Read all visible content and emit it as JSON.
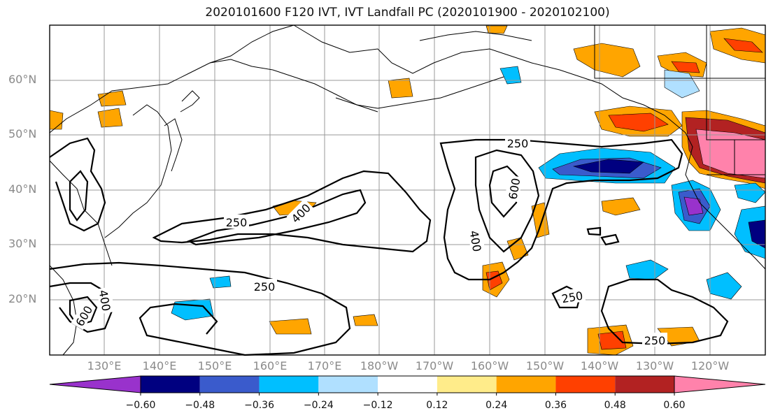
{
  "title": "2020101600 F120 IVT, IVT Landfall PC (2020101900 - 2020102100)",
  "lat_labels": [
    "60°N",
    "50°N",
    "40°N",
    "30°N",
    "20°N"
  ],
  "lon_labels": [
    "130°E",
    "140°E",
    "150°E",
    "160°E",
    "170°E",
    "180°W",
    "170°W",
    "160°W",
    "150°W",
    "140°W",
    "130°W",
    "120°W"
  ],
  "contour_labels": [
    "250",
    "400",
    "250",
    "600",
    "400",
    "250",
    "400",
    "600",
    "250",
    "250"
  ],
  "colorbar": {
    "ticks": [
      "−0.60",
      "−0.48",
      "−0.36",
      "−0.24",
      "−0.12",
      "0.12",
      "0.24",
      "0.36",
      "0.48",
      "0.60"
    ],
    "colors": [
      "#9932cc",
      "#000080",
      "#3a5bcc",
      "#00bfff",
      "#b0e0ff",
      "#ffffff",
      "#ffec8a",
      "#ffa500",
      "#ff4000",
      "#b22222",
      "#ff82ab"
    ]
  }
}
